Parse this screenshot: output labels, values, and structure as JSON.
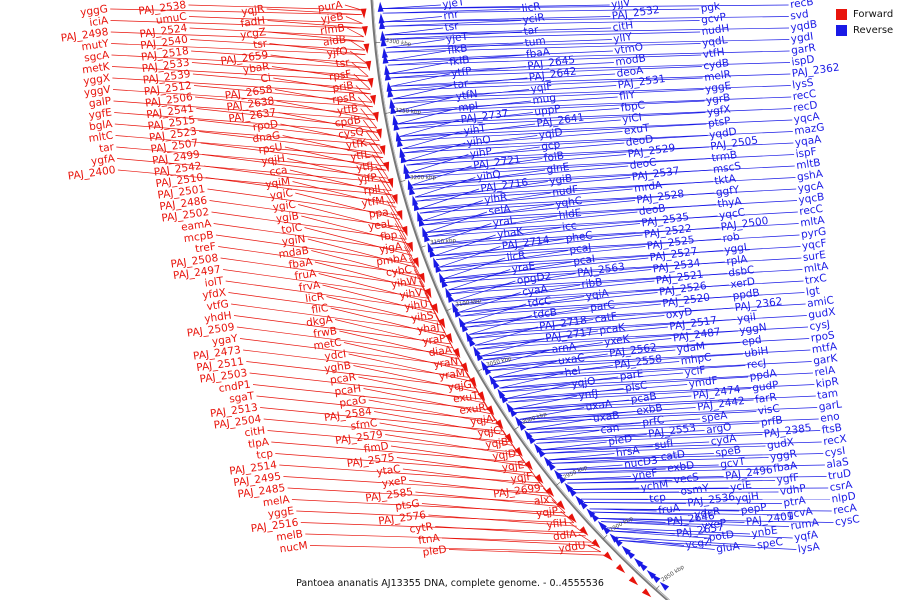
{
  "caption": "Pantoea ananatis AJ13355 DNA, complete genome. - 0..4555536",
  "colors": {
    "forward": "#e8140c",
    "reverse": "#1a1ae6",
    "backbone": "#777777"
  },
  "legend": [
    {
      "label": "Forward",
      "color": "#e8140c"
    },
    {
      "label": "Reverse",
      "color": "#1a1ae6"
    }
  ],
  "ruler_ticks": [
    "3300 kbp",
    "3250 kbp",
    "3200 kbp",
    "3150 kbp",
    "3100 kbp",
    "3050 kbp",
    "3000 kbp",
    "2950 kbp",
    "2900 kbp",
    "2850 kbp"
  ],
  "forward_labels": [
    "purA",
    "yjeB",
    "rlmB",
    "aidB",
    "yjfO",
    "tsr",
    "rpsF",
    "priB",
    "rpsR",
    "ytfB",
    "cpdB",
    "cysQ",
    "ytfK",
    "ytfL",
    "ytfJ",
    "yjfP",
    "rplI",
    "ytfM",
    "ppa",
    "yeaL",
    "fbp",
    "yjgA",
    "pmbA",
    "cybC",
    "yihW",
    "yihV",
    "yihU",
    "yihS",
    "yhaJ",
    "yraP",
    "diaA",
    "yraN",
    "yraM",
    "yqjG",
    "exuT",
    "exuR",
    "yqjA",
    "yqjC",
    "yqjB",
    "yqjD",
    "yqjE",
    "yqjF",
    "PAJ_2699",
    "alx",
    "yqjP",
    "yfiH",
    "ddlA",
    "yddU",
    "yqjR",
    "fadH",
    "ycgZ",
    "tsr",
    "PAJ_2659",
    "ybaR",
    "Ci",
    "PAJ_2658",
    "PAJ_2638",
    "PAJ_2637",
    "rpoD",
    "dnaG",
    "rpsU",
    "yqjH",
    "cca",
    "yqiM",
    "yqiC",
    "ygiC",
    "ygiB",
    "tolC",
    "ygiN",
    "mdaB",
    "fbaA",
    "fruA",
    "frvA",
    "licR",
    "fliC",
    "dkgA",
    "frwB",
    "metC",
    "ydcI",
    "yghB",
    "pcaR",
    "pcaH",
    "pcaG",
    "PAJ_2584",
    "sfmC",
    "PAJ_2579",
    "fimD",
    "PAJ_2575",
    "ytaC",
    "yxeP",
    "PAJ_2585",
    "ptsG",
    "PAJ_2576",
    "cytR",
    "ftnA",
    "pleD",
    "PAJ_2538",
    "umuC",
    "PAJ_2524",
    "PAJ_2540",
    "PAJ_2518",
    "PAJ_2533",
    "PAJ_2539",
    "PAJ_2512",
    "PAJ_2506",
    "PAJ_2541",
    "PAJ_2515",
    "PAJ_2523",
    "PAJ_2507",
    "PAJ_2499",
    "PAJ_2542",
    "PAJ_2510",
    "PAJ_2501",
    "PAJ_2486",
    "PAJ_2502",
    "eamA",
    "mcpB",
    "treF",
    "PAJ_2508",
    "PAJ_2497",
    "iolT",
    "yfdX",
    "vtfG",
    "yhdH",
    "PAJ_2509",
    "ygaY",
    "PAJ_2473",
    "PAJ_2511",
    "PAJ_2503",
    "cndP1",
    "sgaT",
    "PAJ_2513",
    "PAJ_2504",
    "citH",
    "tlpA",
    "tcp",
    "PAJ_2514",
    "PAJ_2495",
    "PAJ_2485",
    "melA",
    "yggE",
    "PAJ_2516",
    "melB",
    "nucM",
    "yggG",
    "iciA",
    "PAJ_2498",
    "mutY",
    "sgcA",
    "metK",
    "yggX",
    "yggV",
    "galP",
    "ygfE",
    "bglA",
    "mltC",
    "tar",
    "ygfA",
    "PAJ_2400"
  ],
  "reverse_labels": [
    "yjeT",
    "rnr",
    "tsr",
    "yjeT",
    "flkB",
    "fkIB",
    "ytfP",
    "tar",
    "ytfN",
    "mpI",
    "PAJ_2737",
    "yihT",
    "yihO",
    "yihP",
    "PAJ_2721",
    "yihQ",
    "PAJ_2716",
    "yihR",
    "selA",
    "yraL",
    "yhaK",
    "PAJ_2714",
    "licR",
    "yraE",
    "opgD2",
    "cyaA",
    "tdcC",
    "tdcB",
    "PAJ_2718",
    "PAJ_2717",
    "arnA",
    "uxaC",
    "hel",
    "yqjO",
    "ynfJ",
    "uxaA",
    "uxaB",
    "can",
    "pleD",
    "hrsA",
    "nucD3",
    "yneF",
    "ychM",
    "tcp",
    "fruA",
    "PAJ_2646",
    "PAJ_2657",
    "ycgZ",
    "licR",
    "yciR",
    "tar",
    "tum",
    "fbaA",
    "PAJ_2645",
    "PAJ_2642",
    "yqiF",
    "mug",
    "uppP",
    "PAJ_2641",
    "yqiD",
    "gcp",
    "folB",
    "glnE",
    "ygiB",
    "nudF",
    "yqhC",
    "hldE",
    "icc",
    "pheC",
    "pcaJ",
    "pcaI",
    "PAJ_2563",
    "ribB",
    "yqiA",
    "parC",
    "catF",
    "pcaK",
    "yxeK",
    "PAJ_2562",
    "PAJ_2558",
    "parE",
    "plsC",
    "pcaB",
    "exbB",
    "prfC",
    "PAJ_2553",
    "sufI",
    "catD",
    "exbD",
    "vecS",
    "osmY",
    "PAJ_2536",
    "ydcR",
    "yxeP",
    "potD",
    "gluA",
    "yjjV",
    "PAJ_2532",
    "citH",
    "ylIY",
    "vtmO",
    "modB",
    "deoA",
    "PAJ_2531",
    "fliY",
    "fbpC",
    "yiCI",
    "exuT",
    "deoD",
    "PAJ_2529",
    "deoC",
    "PAJ_2537",
    "mrdA",
    "PAJ_2528",
    "deoB",
    "PAJ_2535",
    "PAJ_2522",
    "PAJ_2525",
    "PAJ_2527",
    "PAJ_2534",
    "PAJ_2521",
    "PAJ_2526",
    "PAJ_2520",
    "oxyD",
    "PAJ_2517",
    "PAJ_2487",
    "ydaM",
    "mhpC",
    "yciF",
    "ymdF",
    "PAJ_2474",
    "PAJ_2442",
    "speA",
    "argO",
    "cydA",
    "speB",
    "gcvT",
    "PAJ_2496",
    "yciE",
    "yqjH",
    "pepP",
    "PAJ_2401",
    "ynbE",
    "speC",
    "pgk",
    "gcvP",
    "nudH",
    "yqdL",
    "vtfH",
    "cydB",
    "melR",
    "yggE",
    "ygrB",
    "ygfX",
    "ptsP",
    "yqdD",
    "PAJ_2505",
    "trmB",
    "mscS",
    "tktA",
    "ggfY",
    "thyA",
    "yqcC",
    "PAJ_2500",
    "rob",
    "yggL",
    "rplA",
    "dsbC",
    "xerD",
    "ppdB",
    "PAJ_2362",
    "yqiI",
    "yggN",
    "epd",
    "ubiH",
    "recJ",
    "ppdA",
    "gudP",
    "farR",
    "visC",
    "prfB",
    "PAJ_2385",
    "gudX",
    "yggR",
    "fbaA",
    "ygfF",
    "vdhP",
    "ptrA",
    "gcvA",
    "rumA",
    "yqfA",
    "lysA",
    "recB",
    "svd",
    "yqdB",
    "ygdI",
    "garR",
    "ispD",
    "PAJ_2362",
    "lysS",
    "recC",
    "recD",
    "yqcA",
    "mazG",
    "yqaA",
    "ispF",
    "mltB",
    "gshA",
    "ygcA",
    "yqcB",
    "recC",
    "mltA",
    "pyrG",
    "yqcF",
    "surE",
    "mltA",
    "trxC",
    "lgt",
    "amiC",
    "gudX",
    "cysJ",
    "rpoS",
    "mtfA",
    "garK",
    "relA",
    "kipR",
    "tam",
    "garL",
    "eno",
    "ftsB",
    "recX",
    "cysI",
    "alaS",
    "truD",
    "csrA",
    "nlpD",
    "recA",
    "cysC"
  ]
}
